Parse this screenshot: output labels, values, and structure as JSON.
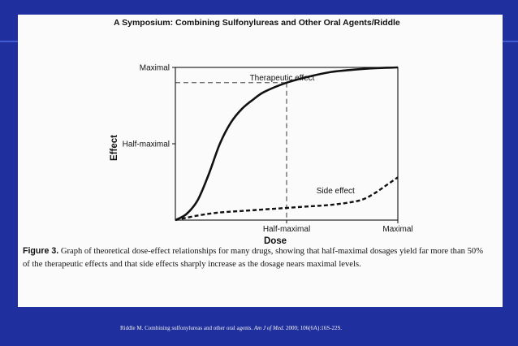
{
  "header": {
    "title": "A Symposium: Combining Sulfonylureas and Other Oral Agents/Riddle"
  },
  "chart_data": {
    "type": "line",
    "title": "",
    "xlabel": "Dose",
    "ylabel": "Effect",
    "x_ticks": [
      {
        "pos": 0.5,
        "label": "Half-maximal"
      },
      {
        "pos": 1.0,
        "label": "Maximal"
      }
    ],
    "y_ticks": [
      {
        "pos": 0.5,
        "label": "Half-maximal"
      },
      {
        "pos": 1.0,
        "label": "Maximal"
      }
    ],
    "xlim": [
      0,
      1
    ],
    "ylim": [
      0,
      1
    ],
    "series": [
      {
        "name": "Therapeutic effect",
        "style": "solid",
        "x": [
          0,
          0.05,
          0.1,
          0.15,
          0.2,
          0.25,
          0.3,
          0.35,
          0.4,
          0.5,
          0.6,
          0.7,
          0.8,
          0.9,
          1.0
        ],
        "y": [
          0,
          0.04,
          0.13,
          0.3,
          0.5,
          0.64,
          0.73,
          0.79,
          0.84,
          0.9,
          0.94,
          0.97,
          0.985,
          0.995,
          1.0
        ]
      },
      {
        "name": "Side effect",
        "style": "dashed",
        "x": [
          0,
          0.1,
          0.2,
          0.3,
          0.4,
          0.5,
          0.6,
          0.7,
          0.8,
          0.85,
          0.9,
          0.95,
          1.0
        ],
        "y": [
          0,
          0.03,
          0.05,
          0.06,
          0.07,
          0.08,
          0.09,
          0.1,
          0.12,
          0.14,
          0.18,
          0.23,
          0.28
        ]
      }
    ],
    "reference_lines": {
      "x": 0.5,
      "y_at_x": 0.9
    },
    "annotations": [
      "Therapeutic effect",
      "Side effect"
    ]
  },
  "caption": {
    "label": "Figure 3.",
    "text": "Graph of theoretical dose-effect relationships for many drugs, showing that half-maximal dosages yield far more than 50% of the therapeutic effects and that side effects sharply increase as the dosage nears maximal levels."
  },
  "footer": {
    "prefix": "Riddle M. Combining sulfonylureas and other oral agents.",
    "journal": "Am J of Med.",
    "suffix": "2000; 106(6A):16S-22S."
  }
}
